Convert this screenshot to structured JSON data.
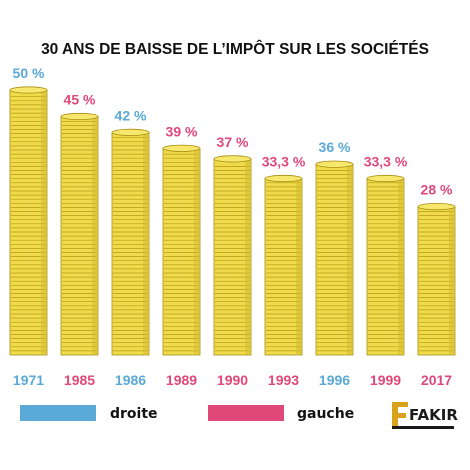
{
  "chart_data": {
    "type": "bar",
    "title": "30 ANS DE BAISSE DE L’IMPÔT SUR LES SOCIÉTÉS",
    "categories": [
      "1971",
      "1985",
      "1986",
      "1989",
      "1990",
      "1993",
      "1996",
      "1999",
      "2017"
    ],
    "values": [
      50,
      45,
      42,
      39,
      37,
      33.3,
      36,
      33.3,
      28
    ],
    "value_labels": [
      "50 %",
      "45 %",
      "42 %",
      "39 %",
      "37 %",
      "33,3 %",
      "36 %",
      "33,3 %",
      "28 %"
    ],
    "groups": [
      "droite",
      "gauche",
      "droite",
      "gauche",
      "gauche",
      "gauche",
      "droite",
      "gauche",
      "gauche"
    ],
    "legend": [
      {
        "key": "droite",
        "label": "droite",
        "color": "#5aa9d6"
      },
      {
        "key": "gauche",
        "label": "gauche",
        "color": "#e0487a"
      }
    ],
    "ylim": [
      0,
      50
    ],
    "grid": false,
    "legend_position": "bottom",
    "bar_style": "coin-stack",
    "coin_color": "#f0dc4a"
  },
  "logo": {
    "text": "FAKIR"
  }
}
